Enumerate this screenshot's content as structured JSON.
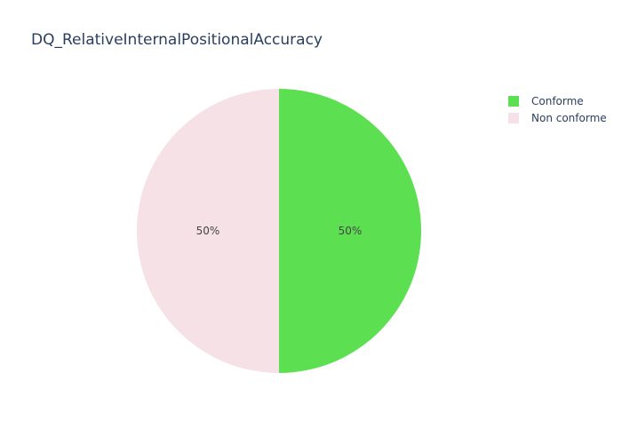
{
  "chart_data": {
    "type": "pie",
    "title": "DQ_RelativeInternalPositionalAccuracy",
    "labels": [
      "Conforme",
      "Non conforme"
    ],
    "values": [
      50,
      50
    ],
    "percent_labels": [
      "50%",
      "50%"
    ],
    "colors": [
      "#5ce052",
      "#f5e1e6"
    ],
    "legend_position": "top-right",
    "direction": "clockwise",
    "start_angle_deg": 90
  }
}
